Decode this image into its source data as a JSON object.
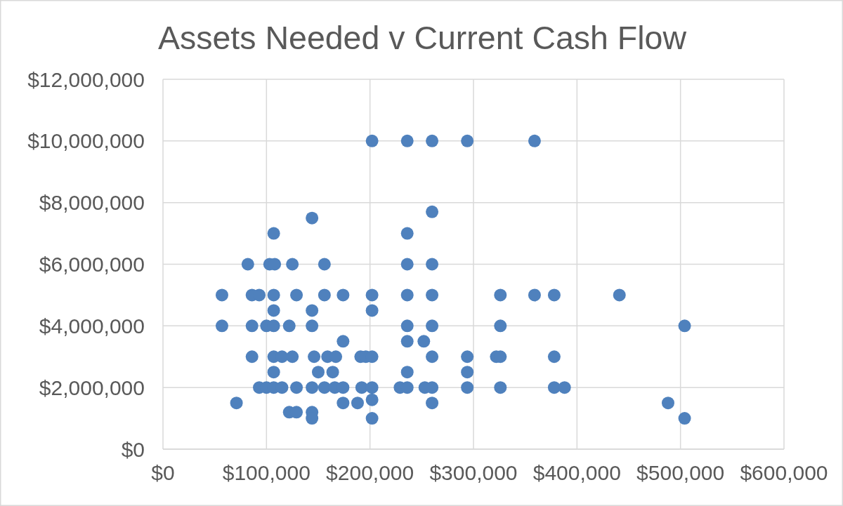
{
  "chart_data": {
    "type": "scatter",
    "title": "Assets Needed v Current Cash Flow",
    "xlim": [
      0,
      600000
    ],
    "xticks": [
      {
        "value": 0,
        "label": "$0"
      },
      {
        "value": 100000,
        "label": "$100,000"
      },
      {
        "value": 200000,
        "label": "$200,000"
      },
      {
        "value": 300000,
        "label": "$300,000"
      },
      {
        "value": 400000,
        "label": "$400,000"
      },
      {
        "value": 500000,
        "label": "$500,000"
      },
      {
        "value": 600000,
        "label": "$600,000"
      }
    ],
    "ylim": [
      0,
      12000000
    ],
    "yticks": [
      {
        "value": 0,
        "label": "$0"
      },
      {
        "value": 2000000,
        "label": "$2,000,000"
      },
      {
        "value": 4000000,
        "label": "$4,000,000"
      },
      {
        "value": 6000000,
        "label": "$6,000,000"
      },
      {
        "value": 8000000,
        "label": "$8,000,000"
      },
      {
        "value": 10000000,
        "label": "$10,000,000"
      },
      {
        "value": 12000000,
        "label": "$12,000,000"
      }
    ],
    "grid": true,
    "marker": "circle",
    "series": [
      {
        "color": "#4f81bd",
        "x": [
          202000,
          236000,
          260000,
          294000,
          359000,
          260000,
          144000,
          107000,
          236000,
          82000,
          103000,
          108000,
          125000,
          156000,
          236000,
          260000,
          57000,
          86000,
          93000,
          107000,
          129000,
          156000,
          174000,
          202000,
          236000,
          260000,
          326000,
          359000,
          378000,
          441000,
          107000,
          144000,
          202000,
          57000,
          86000,
          100000,
          107000,
          122000,
          144000,
          236000,
          260000,
          326000,
          504000,
          174000,
          236000,
          252000,
          86000,
          107000,
          115000,
          125000,
          146000,
          159000,
          167000,
          191000,
          196000,
          202000,
          260000,
          294000,
          322000,
          326000,
          378000,
          107000,
          150000,
          164000,
          236000,
          294000,
          93000,
          100000,
          107000,
          115000,
          129000,
          144000,
          156000,
          166000,
          174000,
          192000,
          202000,
          229000,
          236000,
          253000,
          260000,
          294000,
          326000,
          378000,
          388000,
          202000,
          71000,
          174000,
          188000,
          260000,
          488000,
          122000,
          129000,
          144000,
          144000,
          202000,
          504000
        ],
        "values": [
          10000000,
          10000000,
          10000000,
          10000000,
          10000000,
          7700000,
          7500000,
          7000000,
          7000000,
          6000000,
          6000000,
          6000000,
          6000000,
          6000000,
          6000000,
          6000000,
          5000000,
          5000000,
          5000000,
          5000000,
          5000000,
          5000000,
          5000000,
          5000000,
          5000000,
          5000000,
          5000000,
          5000000,
          5000000,
          5000000,
          4500000,
          4500000,
          4500000,
          4000000,
          4000000,
          4000000,
          4000000,
          4000000,
          4000000,
          4000000,
          4000000,
          4000000,
          4000000,
          3500000,
          3500000,
          3500000,
          3000000,
          3000000,
          3000000,
          3000000,
          3000000,
          3000000,
          3000000,
          3000000,
          3000000,
          3000000,
          3000000,
          3000000,
          3000000,
          3000000,
          3000000,
          2500000,
          2500000,
          2500000,
          2500000,
          2500000,
          2000000,
          2000000,
          2000000,
          2000000,
          2000000,
          2000000,
          2000000,
          2000000,
          2000000,
          2000000,
          2000000,
          2000000,
          2000000,
          2000000,
          2000000,
          2000000,
          2000000,
          2000000,
          2000000,
          1600000,
          1500000,
          1500000,
          1500000,
          1500000,
          1500000,
          1200000,
          1200000,
          1200000,
          1000000,
          1000000,
          1000000
        ]
      }
    ]
  }
}
